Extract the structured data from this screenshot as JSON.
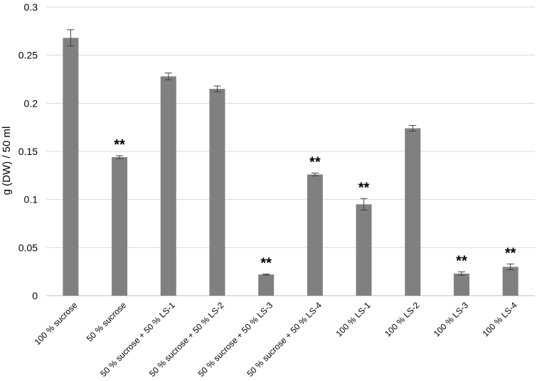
{
  "chart_data": {
    "type": "bar",
    "title": "",
    "xlabel": "",
    "ylabel": "g (DW) / 50 ml",
    "ylim": [
      0,
      0.3
    ],
    "yticks": [
      0,
      0.05,
      0.1,
      0.15,
      0.2,
      0.25,
      0.3
    ],
    "ytick_labels": [
      "0",
      "0.05",
      "0.1",
      "0.15",
      "0.2",
      "0.25",
      "0.3"
    ],
    "grid": true,
    "bar_color": "#808080",
    "categories": [
      "100 % sucrose",
      "50 % sucrose",
      "50 % sucrose + 50 % LS-1",
      "50 % sucrose + 50 % LS-2",
      "50 % sucrose + 50 % LS-3",
      "50 % sucrose + 50 % LS-4",
      "100 % LS-1",
      "100 % LS-2",
      "100 % LS-3",
      "100 % LS-4"
    ],
    "values": [
      0.268,
      0.144,
      0.228,
      0.215,
      0.022,
      0.126,
      0.095,
      0.174,
      0.023,
      0.03
    ],
    "errors": [
      0.0085,
      0.0015,
      0.0035,
      0.003,
      0.0005,
      0.0015,
      0.006,
      0.003,
      0.0018,
      0.003
    ],
    "annotations": [
      "",
      "**",
      "",
      "",
      "**",
      "**",
      "**",
      "",
      "**",
      "**"
    ]
  }
}
